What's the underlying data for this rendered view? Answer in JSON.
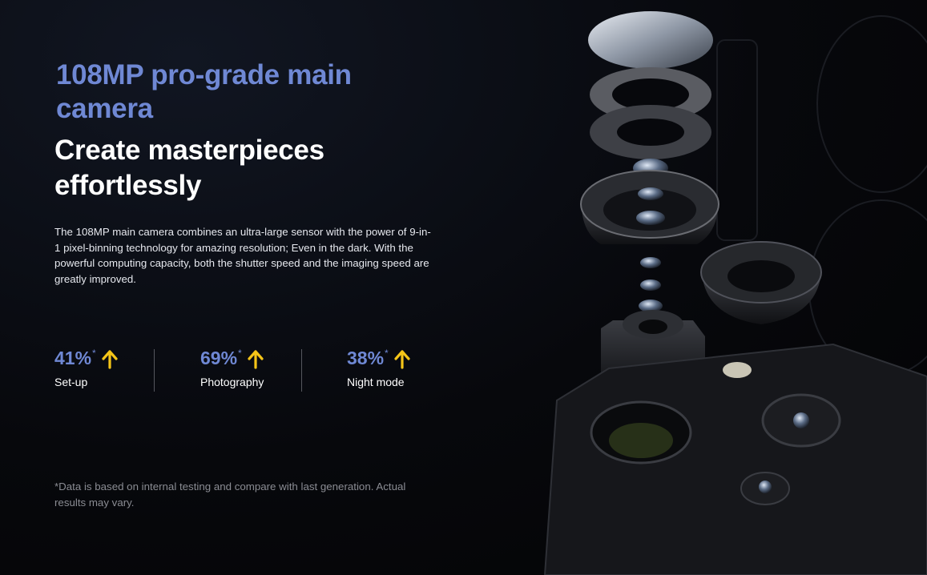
{
  "headline": {
    "title": "108MP pro-grade main camera",
    "subtitle": "Create masterpieces effortlessly"
  },
  "description": "The 108MP main camera combines an ultra-large sensor with the power of 9-in-1 pixel-binning technology for amazing resolution; Even in the dark. With the powerful computing capacity, both the shutter speed and the imaging speed are greatly improved.",
  "stats": [
    {
      "value": "41%",
      "asterisk": "*",
      "label": "Set-up",
      "icon": "arrow-up-icon"
    },
    {
      "value": "69%",
      "asterisk": "*",
      "label": "Photography",
      "icon": "arrow-up-icon"
    },
    {
      "value": "38%",
      "asterisk": "*",
      "label": "Night mode",
      "icon": "arrow-up-icon"
    }
  ],
  "footnote": "*Data is based on internal testing and compare with last generation. Actual results may vary.",
  "colors": {
    "accent": "#6f88d4",
    "arrow": "#f5c518",
    "background": "#07080c"
  }
}
